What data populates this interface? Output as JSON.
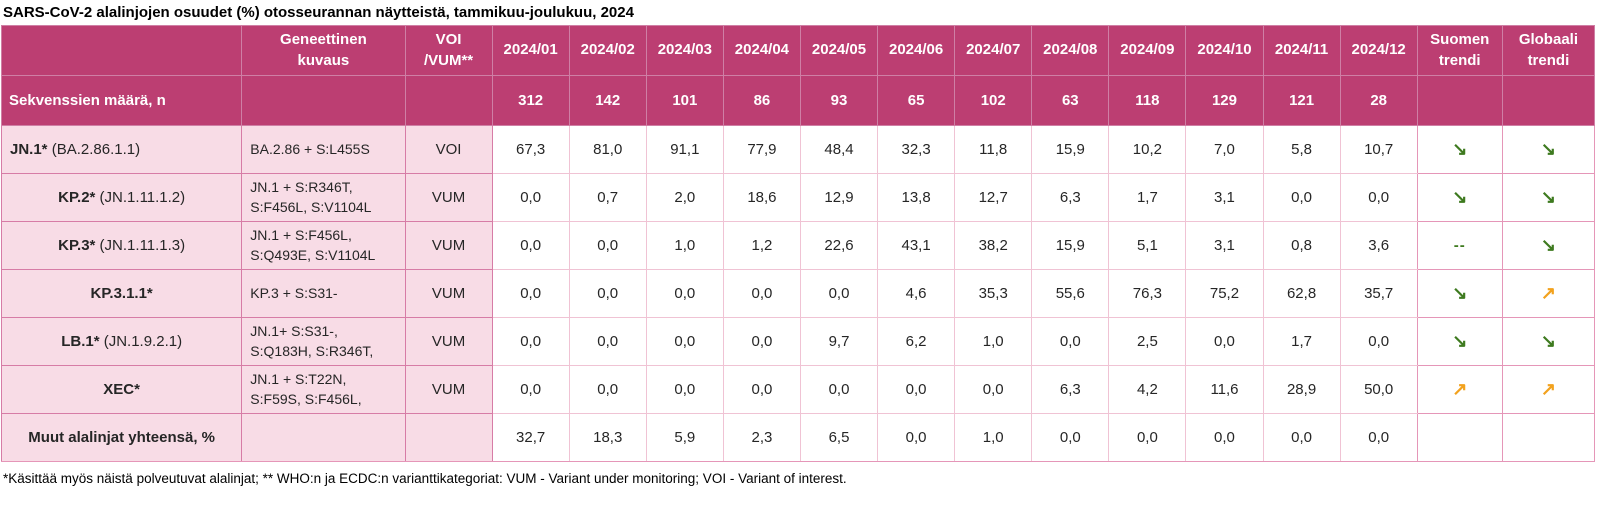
{
  "title": "SARS-CoV-2 alalinjojen osuudet (%) otosseurannan näytteistä, tammikuu-joulukuu, 2024",
  "colors": {
    "header_bg": "#bc3e72",
    "label_bg": "#f8dce6",
    "trend_down_green": "#3e7a1f",
    "trend_up_orange": "#f2a21e"
  },
  "glyphs": {
    "down": "↘",
    "up": "↗",
    "flat": "--",
    "none": ""
  },
  "table": {
    "name_header": "",
    "genetic_header": "Geneettinen\nkuvaus",
    "voi_header": "VOI\n/VUM**",
    "months": [
      "2024/01",
      "2024/02",
      "2024/03",
      "2024/04",
      "2024/05",
      "2024/06",
      "2024/07",
      "2024/08",
      "2024/09",
      "2024/10",
      "2024/11",
      "2024/12"
    ],
    "trend_headers": [
      "Suomen\ntrendi",
      "Globaali\ntrendi"
    ],
    "sequences_row": {
      "label": "Sekvenssien määrä, n",
      "values": [
        "312",
        "142",
        "101",
        "86",
        "93",
        "65",
        "102",
        "63",
        "118",
        "129",
        "121",
        "28"
      ]
    },
    "rows": [
      {
        "name_bold": "JN.1*",
        "name_rest": " (BA.2.86.1.1)",
        "align": "left",
        "genetic": "BA.2.86 + S:L455S",
        "category": "VOI",
        "values": [
          "67,3",
          "81,0",
          "91,1",
          "77,9",
          "48,4",
          "32,3",
          "11,8",
          "15,9",
          "10,2",
          "7,0",
          "5,8",
          "10,7"
        ],
        "suomen": "down",
        "globaali": "down"
      },
      {
        "name_bold": "KP.2*",
        "name_rest": " (JN.1.11.1.2)",
        "align": "center",
        "genetic": "JN.1 + S:R346T,\nS:F456L, S:V1104L",
        "category": "VUM",
        "values": [
          "0,0",
          "0,7",
          "2,0",
          "18,6",
          "12,9",
          "13,8",
          "12,7",
          "6,3",
          "1,7",
          "3,1",
          "0,0",
          "0,0"
        ],
        "suomen": "down",
        "globaali": "down"
      },
      {
        "name_bold": "KP.3*",
        "name_rest": " (JN.1.11.1.3)",
        "align": "center",
        "genetic": "JN.1 + S:F456L,\nS:Q493E, S:V1104L",
        "category": "VUM",
        "values": [
          "0,0",
          "0,0",
          "1,0",
          "1,2",
          "22,6",
          "43,1",
          "38,2",
          "15,9",
          "5,1",
          "3,1",
          "0,8",
          "3,6"
        ],
        "suomen": "flat",
        "globaali": "down"
      },
      {
        "name_bold": "KP.3.1.1*",
        "name_rest": "",
        "align": "center",
        "genetic": "KP.3 + S:S31-",
        "category": "VUM",
        "values": [
          "0,0",
          "0,0",
          "0,0",
          "0,0",
          "0,0",
          "4,6",
          "35,3",
          "55,6",
          "76,3",
          "75,2",
          "62,8",
          "35,7"
        ],
        "suomen": "down",
        "globaali": "up"
      },
      {
        "name_bold": "LB.1*",
        "name_rest": " (JN.1.9.2.1)",
        "align": "center",
        "genetic": "JN.1+ S:S31-,\nS:Q183H, S:R346T,",
        "category": "VUM",
        "values": [
          "0,0",
          "0,0",
          "0,0",
          "0,0",
          "9,7",
          "6,2",
          "1,0",
          "0,0",
          "2,5",
          "0,0",
          "1,7",
          "0,0"
        ],
        "suomen": "down",
        "globaali": "down"
      },
      {
        "name_bold": "XEC*",
        "name_rest": "",
        "align": "center",
        "genetic": "JN.1 + S:T22N,\nS:F59S, S:F456L,",
        "category": "VUM",
        "values": [
          "0,0",
          "0,0",
          "0,0",
          "0,0",
          "0,0",
          "0,0",
          "0,0",
          "6,3",
          "4,2",
          "11,6",
          "28,9",
          "50,0"
        ],
        "suomen": "up",
        "globaali": "up"
      },
      {
        "name_bold": "Muut alalinjat yhteensä, %",
        "name_rest": "",
        "align": "center",
        "genetic": "",
        "category": "",
        "values": [
          "32,7",
          "18,3",
          "5,9",
          "2,3",
          "6,5",
          "0,0",
          "1,0",
          "0,0",
          "0,0",
          "0,0",
          "0,0",
          "0,0"
        ],
        "suomen": "none",
        "globaali": "none"
      }
    ]
  },
  "footnote": "*Käsittää myös näistä polveutuvat alalinjat; ** WHO:n ja ECDC:n varianttikategoriat: VUM - Variant under monitoring; VOI - Variant of interest."
}
